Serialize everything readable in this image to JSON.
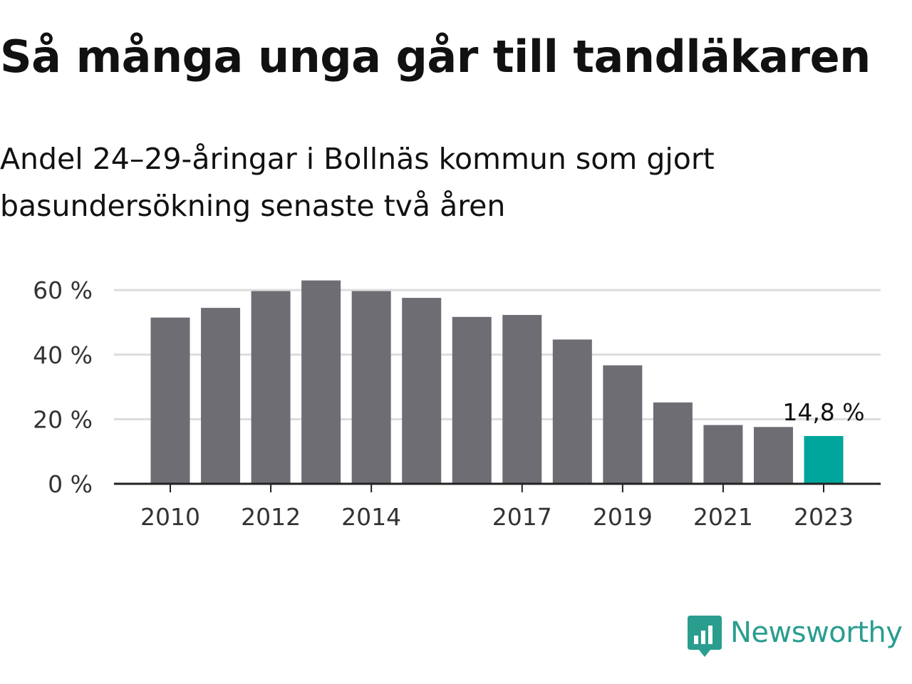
{
  "title": "Så många unga går till tandläkaren",
  "subtitle": "Andel 24–29-åringar i Bollnäs kommun som gjort basundersökning senaste två åren",
  "brand": {
    "name": "Newsworthy",
    "color": "#2a9d8f",
    "icon": "bar-chart-speech-bubble-icon"
  },
  "chart_data": {
    "type": "bar",
    "x": [
      2010,
      2011,
      2012,
      2013,
      2014,
      2015,
      2016,
      2017,
      2018,
      2019,
      2020,
      2021,
      2022,
      2023
    ],
    "values": [
      51.5,
      54.5,
      59.7,
      63.0,
      59.7,
      57.6,
      51.7,
      52.3,
      44.7,
      36.7,
      25.2,
      18.2,
      17.6,
      14.8
    ],
    "x_tick_labels": [
      "2010",
      "2012",
      "2014",
      "2017",
      "2019",
      "2021",
      "2023"
    ],
    "y_ticks": [
      "0 %",
      "20 %",
      "40 %",
      "60 %"
    ],
    "ylim": [
      0,
      66
    ],
    "grid": true,
    "colors": {
      "bar": "#6e6d73",
      "highlight": "#00a59b"
    },
    "highlight_index": 13,
    "annotation": {
      "label": "14,8 %",
      "index": 13
    },
    "xlabel": "",
    "ylabel": ""
  }
}
